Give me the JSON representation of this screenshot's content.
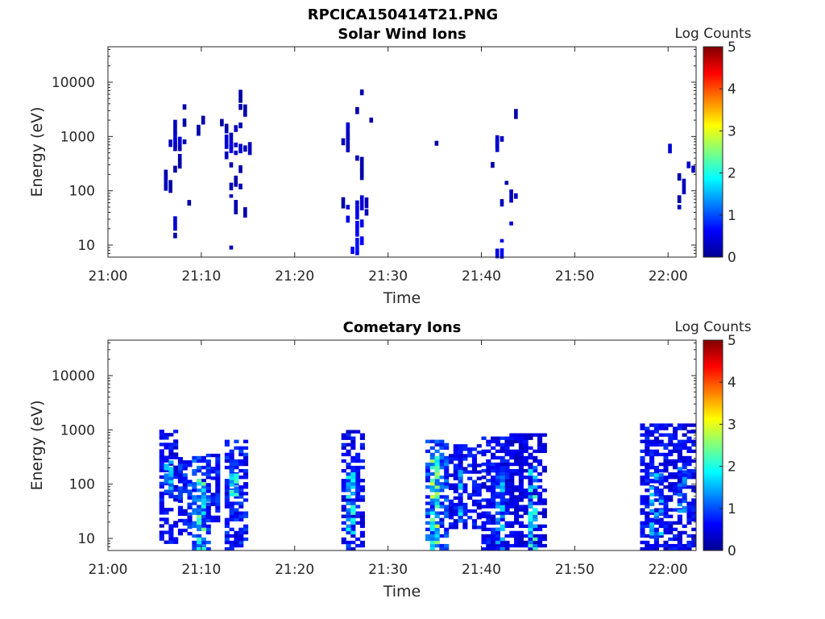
{
  "figure_title": "RPCICA150414T21.PNG",
  "chart_data": [
    {
      "type": "heatmap",
      "title": "Solar Wind Ions",
      "xlabel": "Time",
      "ylabel": "Energy (eV)",
      "xlim": [
        "21:00",
        "22:03"
      ],
      "ylim": [
        6,
        45000
      ],
      "yscale": "log",
      "xticks": [
        "21:00",
        "21:10",
        "21:20",
        "21:30",
        "21:40",
        "21:50",
        "22:00"
      ],
      "yticks": [
        "10",
        "100",
        "1000",
        "10000"
      ],
      "colorbar": {
        "label": "Log Counts",
        "min": 0,
        "max": 5,
        "ticks": [
          "0",
          "1",
          "2",
          "3",
          "4",
          "5"
        ],
        "colormap": "jet"
      },
      "grid": false,
      "cells": [
        [
          "21:06",
          200,
          0.2
        ],
        [
          "21:06",
          140,
          0.3
        ],
        [
          "21:06.5",
          120,
          0.2
        ],
        [
          "21:06.5",
          750,
          0.3
        ],
        [
          "21:07",
          1500,
          0.3
        ],
        [
          "21:07",
          950,
          0.4
        ],
        [
          "21:07",
          750,
          0.5
        ],
        [
          "21:07",
          650,
          0.3
        ],
        [
          "21:07",
          250,
          0.2
        ],
        [
          "21:07",
          25,
          0.4
        ],
        [
          "21:07",
          15,
          0.2
        ],
        [
          "21:07.5",
          800,
          0.4
        ],
        [
          "21:07.5",
          600,
          0.3
        ],
        [
          "21:07.5",
          350,
          0.2
        ],
        [
          "21:08",
          3500,
          0.2
        ],
        [
          "21:08",
          1800,
          0.2
        ],
        [
          "21:08",
          800,
          0.3
        ],
        [
          "21:08.5",
          60,
          0.2
        ],
        [
          "21:09.5",
          1300,
          0.2
        ],
        [
          "21:10",
          2000,
          0.2
        ],
        [
          "21:12",
          1800,
          0.2
        ],
        [
          "21:12.5",
          1400,
          0.2
        ],
        [
          "21:12.5",
          800,
          0.4
        ],
        [
          "21:12.5",
          450,
          0.3
        ],
        [
          "21:13",
          1000,
          0.3
        ],
        [
          "21:13",
          700,
          0.4
        ],
        [
          "21:13",
          600,
          0.5
        ],
        [
          "21:13",
          300,
          0.2
        ],
        [
          "21:13",
          120,
          0.3
        ],
        [
          "21:13",
          80,
          0.3
        ],
        [
          "21:13",
          9,
          0.3
        ],
        [
          "21:13.5",
          1400,
          0.3
        ],
        [
          "21:13.5",
          700,
          0.4
        ],
        [
          "21:13.5",
          500,
          0.3
        ],
        [
          "21:13.5",
          150,
          0.2
        ],
        [
          "21:13.5",
          50,
          0.2
        ],
        [
          "21:14",
          5500,
          0.2
        ],
        [
          "21:14",
          3500,
          0.2
        ],
        [
          "21:14",
          1600,
          0.3
        ],
        [
          "21:14",
          600,
          0.4
        ],
        [
          "21:14",
          250,
          0.2
        ],
        [
          "21:14",
          120,
          0.3
        ],
        [
          "21:14.5",
          3000,
          0.2
        ],
        [
          "21:14.5",
          600,
          0.3
        ],
        [
          "21:14.5",
          40,
          0.2
        ],
        [
          "21:15",
          600,
          0.3
        ],
        [
          "21:25",
          800,
          0.3
        ],
        [
          "21:25",
          60,
          0.2
        ],
        [
          "21:25.5",
          1600,
          0.4
        ],
        [
          "21:25.5",
          1200,
          0.4
        ],
        [
          "21:25.5",
          900,
          0.3
        ],
        [
          "21:25.5",
          600,
          0.3
        ],
        [
          "21:25.5",
          50,
          0.4
        ],
        [
          "21:25.5",
          30,
          0.5
        ],
        [
          "21:26",
          8,
          0.6
        ],
        [
          "21:26.5",
          3000,
          0.2
        ],
        [
          "21:26.5",
          400,
          0.3
        ],
        [
          "21:26.5",
          60,
          0.4
        ],
        [
          "21:26.5",
          40,
          0.5
        ],
        [
          "21:26.5",
          20,
          0.6
        ],
        [
          "21:26.5",
          10,
          0.7
        ],
        [
          "21:26.5",
          7,
          0.6
        ],
        [
          "21:27",
          6500,
          0.2
        ],
        [
          "21:27",
          320,
          0.2
        ],
        [
          "21:27",
          200,
          0.2
        ],
        [
          "21:27",
          60,
          0.4
        ],
        [
          "21:27",
          25,
          0.5
        ],
        [
          "21:27",
          12,
          0.6
        ],
        [
          "21:27.5",
          60,
          0.3
        ],
        [
          "21:27.5",
          40,
          0.3
        ],
        [
          "21:28",
          2000,
          0.2
        ],
        [
          "21:35",
          750,
          0.2
        ],
        [
          "21:41",
          300,
          0.2
        ],
        [
          "21:41.5",
          800,
          0.4
        ],
        [
          "21:41.5",
          700,
          0.4
        ],
        [
          "21:41.5",
          7,
          0.5
        ],
        [
          "21:42",
          900,
          0.3
        ],
        [
          "21:42",
          60,
          0.3
        ],
        [
          "21:42",
          12,
          0.5
        ],
        [
          "21:42",
          7,
          0.6
        ],
        [
          "21:42.5",
          140,
          0.2
        ],
        [
          "21:43",
          25,
          0.4
        ],
        [
          "21:43",
          80,
          0.3
        ],
        [
          "21:43.5",
          2600,
          0.2
        ],
        [
          "21:43.5",
          80,
          0.3
        ],
        [
          "22:00",
          600,
          0.4
        ],
        [
          "22:01",
          180,
          0.2
        ],
        [
          "22:01",
          70,
          0.2
        ],
        [
          "22:01",
          50,
          0.3
        ],
        [
          "22:01.5",
          120,
          0.3
        ],
        [
          "22:02",
          300,
          0.4
        ],
        [
          "22:02.5",
          250,
          0.3
        ]
      ]
    },
    {
      "type": "heatmap",
      "title": "Cometary Ions",
      "xlabel": "Time",
      "ylabel": "Energy (eV)",
      "xlim": [
        "21:00",
        "22:03"
      ],
      "ylim": [
        6,
        45000
      ],
      "yscale": "log",
      "xticks": [
        "21:00",
        "21:10",
        "21:20",
        "21:30",
        "21:40",
        "21:50",
        "22:00"
      ],
      "yticks": [
        "10",
        "100",
        "1000",
        "10000"
      ],
      "colorbar": {
        "label": "Log Counts",
        "min": 0,
        "max": 5,
        "ticks": [
          "0",
          "1",
          "2",
          "3",
          "4",
          "5"
        ],
        "colormap": "jet"
      },
      "grid": false,
      "regions": [
        {
          "t0": "21:05.5",
          "t1": "21:07.5",
          "e0": 8,
          "e1": 900,
          "level": 0.6
        },
        {
          "t0": "21:06",
          "t1": "21:07",
          "e0": 60,
          "e1": 250,
          "level": 1.2
        },
        {
          "t0": "21:07.5",
          "t1": "21:09",
          "e0": 10,
          "e1": 300,
          "level": 0.8
        },
        {
          "t0": "21:09",
          "t1": "21:11",
          "e0": 6,
          "e1": 300,
          "level": 0.9
        },
        {
          "t0": "21:09.5",
          "t1": "21:10.5",
          "e0": 6,
          "e1": 120,
          "level": 1.8
        },
        {
          "t0": "21:10.5",
          "t1": "21:12",
          "e0": 20,
          "e1": 350,
          "level": 0.7
        },
        {
          "t0": "21:12.5",
          "t1": "21:15",
          "e0": 6,
          "e1": 600,
          "level": 0.7
        },
        {
          "t0": "21:13",
          "t1": "21:14",
          "e0": 60,
          "e1": 200,
          "level": 1.6
        },
        {
          "t0": "21:25",
          "t1": "21:27.5",
          "e0": 6,
          "e1": 900,
          "level": 0.6
        },
        {
          "t0": "21:25.5",
          "t1": "21:26.5",
          "e0": 6,
          "e1": 150,
          "level": 1.5
        },
        {
          "t0": "21:34",
          "t1": "21:36.5",
          "e0": 6,
          "e1": 600,
          "level": 0.9
        },
        {
          "t0": "21:34.5",
          "t1": "21:35.5",
          "e0": 6,
          "e1": 300,
          "level": 2.0
        },
        {
          "t0": "21:36.5",
          "t1": "21:40",
          "e0": 15,
          "e1": 500,
          "level": 0.6
        },
        {
          "t0": "21:37.5",
          "t1": "21:38",
          "e0": 20,
          "e1": 180,
          "level": 1.3
        },
        {
          "t0": "21:40",
          "t1": "21:43",
          "e0": 6,
          "e1": 700,
          "level": 0.6
        },
        {
          "t0": "21:41.5",
          "t1": "21:42.5",
          "e0": 6,
          "e1": 150,
          "level": 1.2
        },
        {
          "t0": "21:43",
          "t1": "21:47",
          "e0": 6,
          "e1": 800,
          "level": 0.5
        },
        {
          "t0": "21:45",
          "t1": "21:46",
          "e0": 6,
          "e1": 200,
          "level": 1.6
        },
        {
          "t0": "21:57",
          "t1": "22:03",
          "e0": 6,
          "e1": 1300,
          "level": 0.6
        },
        {
          "t0": "21:58",
          "t1": "21:59.5",
          "e0": 10,
          "e1": 150,
          "level": 1.2
        },
        {
          "t0": "22:01",
          "t1": "22:02",
          "e0": 30,
          "e1": 200,
          "level": 1.0
        }
      ]
    }
  ]
}
